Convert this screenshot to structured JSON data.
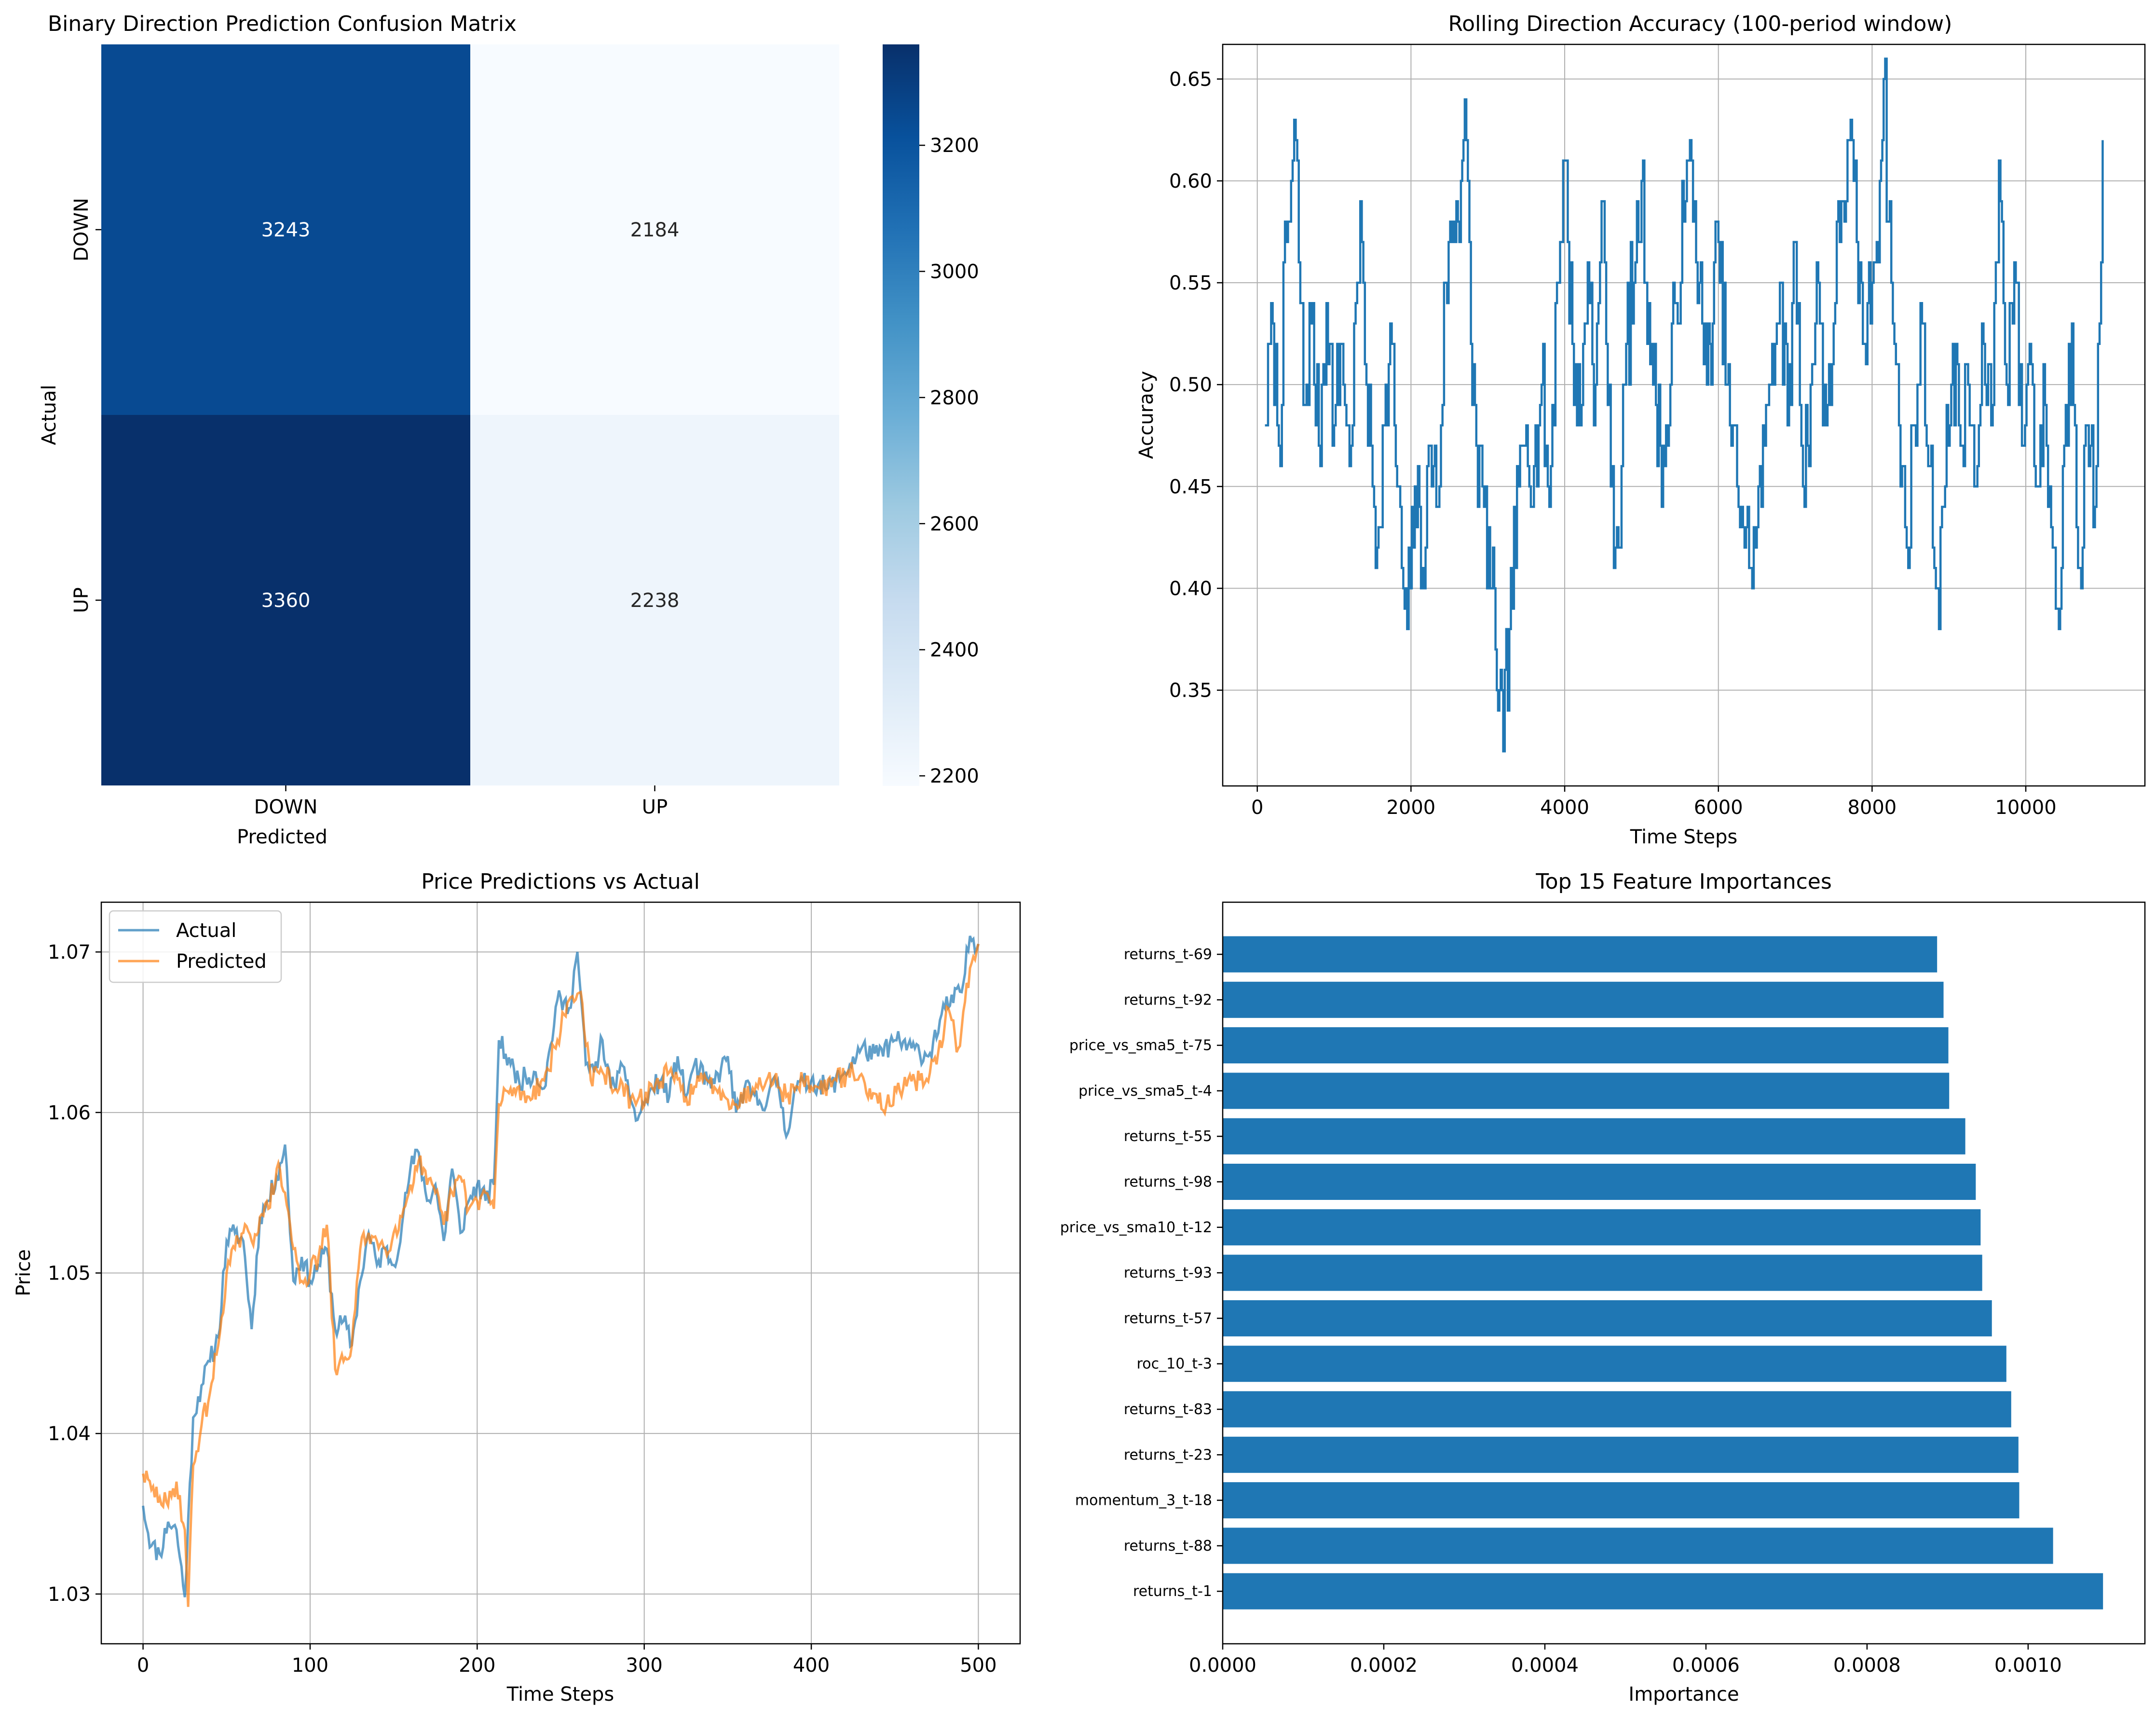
{
  "chart_data": [
    {
      "type": "heatmap",
      "title": "Binary Direction Prediction Confusion Matrix",
      "xlabel": "Predicted",
      "ylabel": "Actual",
      "x_categories": [
        "DOWN",
        "UP"
      ],
      "y_categories": [
        "DOWN",
        "UP"
      ],
      "values": [
        [
          3243,
          2184
        ],
        [
          3360,
          2238
        ]
      ],
      "colormap": "Blues",
      "colorbar": {
        "range": [
          2184,
          3360
        ],
        "ticks": [
          2200,
          2400,
          2600,
          2800,
          3000,
          3200
        ]
      }
    },
    {
      "type": "line",
      "title": "Rolling Direction Accuracy (100-period window)",
      "xlabel": "Time Steps",
      "ylabel": "Accuracy",
      "xlim": [
        -450,
        11550
      ],
      "ylim": [
        0.303,
        0.667
      ],
      "xticks": [
        0,
        2000,
        4000,
        6000,
        8000,
        10000
      ],
      "yticks": [
        0.35,
        0.4,
        0.45,
        0.5,
        0.55,
        0.6,
        0.65
      ],
      "grid": true,
      "color": "#1f77b4",
      "keypoints": [
        [
          100,
          0.48
        ],
        [
          200,
          0.53
        ],
        [
          280,
          0.47
        ],
        [
          380,
          0.57
        ],
        [
          500,
          0.62
        ],
        [
          600,
          0.49
        ],
        [
          700,
          0.53
        ],
        [
          800,
          0.47
        ],
        [
          900,
          0.54
        ],
        [
          1000,
          0.48
        ],
        [
          1100,
          0.52
        ],
        [
          1200,
          0.46
        ],
        [
          1300,
          0.55
        ],
        [
          1360,
          0.57
        ],
        [
          1420,
          0.5
        ],
        [
          1500,
          0.45
        ],
        [
          1560,
          0.42
        ],
        [
          1650,
          0.48
        ],
        [
          1750,
          0.52
        ],
        [
          1820,
          0.45
        ],
        [
          1900,
          0.4
        ],
        [
          1950,
          0.38
        ],
        [
          2050,
          0.45
        ],
        [
          2150,
          0.41
        ],
        [
          2250,
          0.47
        ],
        [
          2350,
          0.44
        ],
        [
          2450,
          0.55
        ],
        [
          2550,
          0.58
        ],
        [
          2650,
          0.6
        ],
        [
          2700,
          0.64
        ],
        [
          2780,
          0.52
        ],
        [
          2850,
          0.47
        ],
        [
          2950,
          0.44
        ],
        [
          3050,
          0.4
        ],
        [
          3100,
          0.37
        ],
        [
          3150,
          0.35
        ],
        [
          3200,
          0.32
        ],
        [
          3280,
          0.38
        ],
        [
          3400,
          0.45
        ],
        [
          3500,
          0.48
        ],
        [
          3600,
          0.46
        ],
        [
          3700,
          0.5
        ],
        [
          3800,
          0.44
        ],
        [
          3900,
          0.55
        ],
        [
          4000,
          0.61
        ],
        [
          4100,
          0.52
        ],
        [
          4200,
          0.48
        ],
        [
          4300,
          0.56
        ],
        [
          4400,
          0.5
        ],
        [
          4500,
          0.59
        ],
        [
          4600,
          0.45
        ],
        [
          4700,
          0.42
        ],
        [
          4800,
          0.52
        ],
        [
          4900,
          0.55
        ],
        [
          5000,
          0.6
        ],
        [
          5150,
          0.5
        ],
        [
          5300,
          0.46
        ],
        [
          5450,
          0.54
        ],
        [
          5550,
          0.58
        ],
        [
          5650,
          0.61
        ],
        [
          5750,
          0.55
        ],
        [
          5850,
          0.5
        ],
        [
          6000,
          0.57
        ],
        [
          6150,
          0.48
        ],
        [
          6300,
          0.44
        ],
        [
          6400,
          0.41
        ],
        [
          6500,
          0.43
        ],
        [
          6600,
          0.47
        ],
        [
          6700,
          0.52
        ],
        [
          6800,
          0.55
        ],
        [
          6900,
          0.48
        ],
        [
          7000,
          0.57
        ],
        [
          7100,
          0.45
        ],
        [
          7200,
          0.5
        ],
        [
          7300,
          0.55
        ],
        [
          7400,
          0.48
        ],
        [
          7500,
          0.53
        ],
        [
          7600,
          0.59
        ],
        [
          7700,
          0.62
        ],
        [
          7800,
          0.57
        ],
        [
          7900,
          0.52
        ],
        [
          8000,
          0.55
        ],
        [
          8100,
          0.6
        ],
        [
          8150,
          0.65
        ],
        [
          8250,
          0.55
        ],
        [
          8350,
          0.48
        ],
        [
          8450,
          0.42
        ],
        [
          8550,
          0.48
        ],
        [
          8650,
          0.53
        ],
        [
          8750,
          0.46
        ],
        [
          8850,
          0.4
        ],
        [
          8950,
          0.45
        ],
        [
          9050,
          0.52
        ],
        [
          9150,
          0.47
        ],
        [
          9250,
          0.5
        ],
        [
          9350,
          0.45
        ],
        [
          9450,
          0.52
        ],
        [
          9550,
          0.48
        ],
        [
          9650,
          0.61
        ],
        [
          9750,
          0.5
        ],
        [
          9850,
          0.56
        ],
        [
          9950,
          0.47
        ],
        [
          10050,
          0.52
        ],
        [
          10150,
          0.45
        ],
        [
          10250,
          0.49
        ],
        [
          10350,
          0.42
        ],
        [
          10430,
          0.38
        ],
        [
          10500,
          0.47
        ],
        [
          10600,
          0.53
        ],
        [
          10700,
          0.41
        ],
        [
          10800,
          0.48
        ],
        [
          10900,
          0.44
        ],
        [
          11000,
          0.62
        ]
      ]
    },
    {
      "type": "line",
      "title": "Price Predictions vs Actual",
      "xlabel": "Time Steps",
      "ylabel": "Price",
      "xlim": [
        -25,
        525
      ],
      "ylim": [
        1.0269,
        1.0731
      ],
      "xticks": [
        0,
        100,
        200,
        300,
        400,
        500
      ],
      "yticks": [
        1.03,
        1.04,
        1.05,
        1.06,
        1.07
      ],
      "grid": true,
      "legend": "top-left",
      "series": [
        {
          "name": "Actual",
          "color": "#1f77b4",
          "keypoints": [
            [
              0,
              1.0355
            ],
            [
              5,
              1.033
            ],
            [
              10,
              1.0325
            ],
            [
              15,
              1.0345
            ],
            [
              20,
              1.034
            ],
            [
              25,
              1.0298
            ],
            [
              30,
              1.041
            ],
            [
              35,
              1.043
            ],
            [
              40,
              1.0445
            ],
            [
              45,
              1.046
            ],
            [
              50,
              1.052
            ],
            [
              55,
              1.0525
            ],
            [
              60,
              1.052
            ],
            [
              65,
              1.0465
            ],
            [
              70,
              1.0535
            ],
            [
              75,
              1.0545
            ],
            [
              80,
              1.056
            ],
            [
              85,
              1.058
            ],
            [
              90,
              1.0495
            ],
            [
              95,
              1.051
            ],
            [
              100,
              1.0495
            ],
            [
              105,
              1.0505
            ],
            [
              110,
              1.0515
            ],
            [
              115,
              1.0465
            ],
            [
              120,
              1.047
            ],
            [
              125,
              1.0455
            ],
            [
              130,
              1.0495
            ],
            [
              135,
              1.0525
            ],
            [
              140,
              1.0505
            ],
            [
              145,
              1.0515
            ],
            [
              150,
              1.0505
            ],
            [
              155,
              1.053
            ],
            [
              160,
              1.0565
            ],
            [
              165,
              1.0575
            ],
            [
              170,
              1.0545
            ],
            [
              175,
              1.0555
            ],
            [
              180,
              1.052
            ],
            [
              185,
              1.0565
            ],
            [
              190,
              1.0525
            ],
            [
              195,
              1.0545
            ],
            [
              200,
              1.0555
            ],
            [
              205,
              1.0545
            ],
            [
              210,
              1.0555
            ],
            [
              213,
              1.0645
            ],
            [
              220,
              1.063
            ],
            [
              225,
              1.062
            ],
            [
              235,
              1.0625
            ],
            [
              240,
              1.0615
            ],
            [
              248,
              1.067
            ],
            [
              255,
              1.0665
            ],
            [
              260,
              1.07
            ],
            [
              265,
              1.063
            ],
            [
              270,
              1.0625
            ],
            [
              275,
              1.0645
            ],
            [
              280,
              1.0615
            ],
            [
              285,
              1.0625
            ],
            [
              290,
              1.062
            ],
            [
              295,
              1.0595
            ],
            [
              300,
              1.0605
            ],
            [
              305,
              1.0615
            ],
            [
              310,
              1.062
            ],
            [
              315,
              1.061
            ],
            [
              320,
              1.0635
            ],
            [
              325,
              1.061
            ],
            [
              330,
              1.063
            ],
            [
              340,
              1.0615
            ],
            [
              350,
              1.0635
            ],
            [
              355,
              1.06
            ],
            [
              360,
              1.0615
            ],
            [
              370,
              1.0605
            ],
            [
              380,
              1.062
            ],
            [
              385,
              1.0585
            ],
            [
              390,
              1.0615
            ],
            [
              400,
              1.062
            ],
            [
              410,
              1.0615
            ],
            [
              420,
              1.0625
            ],
            [
              430,
              1.064
            ],
            [
              440,
              1.0635
            ],
            [
              450,
              1.0645
            ],
            [
              460,
              1.064
            ],
            [
              470,
              1.0635
            ],
            [
              480,
              1.0665
            ],
            [
              490,
              1.0675
            ],
            [
              495,
              1.071
            ],
            [
              500,
              1.0705
            ]
          ]
        },
        {
          "name": "Predicted",
          "color": "#ff7f0e",
          "keypoints": [
            [
              0,
              1.0375
            ],
            [
              5,
              1.0365
            ],
            [
              10,
              1.036
            ],
            [
              15,
              1.0355
            ],
            [
              20,
              1.037
            ],
            [
              25,
              1.034
            ],
            [
              27,
              1.0292
            ],
            [
              30,
              1.038
            ],
            [
              35,
              1.0405
            ],
            [
              40,
              1.0425
            ],
            [
              45,
              1.0455
            ],
            [
              50,
              1.05
            ],
            [
              55,
              1.0515
            ],
            [
              60,
              1.0525
            ],
            [
              65,
              1.052
            ],
            [
              70,
              1.0535
            ],
            [
              75,
              1.054
            ],
            [
              80,
              1.0565
            ],
            [
              85,
              1.055
            ],
            [
              90,
              1.0515
            ],
            [
              95,
              1.0495
            ],
            [
              100,
              1.05
            ],
            [
              105,
              1.051
            ],
            [
              110,
              1.053
            ],
            [
              115,
              1.044
            ],
            [
              120,
              1.0445
            ],
            [
              125,
              1.0455
            ],
            [
              130,
              1.0515
            ],
            [
              135,
              1.0525
            ],
            [
              140,
              1.052
            ],
            [
              145,
              1.0515
            ],
            [
              150,
              1.0525
            ],
            [
              155,
              1.0535
            ],
            [
              160,
              1.0555
            ],
            [
              165,
              1.057
            ],
            [
              170,
              1.0555
            ],
            [
              175,
              1.055
            ],
            [
              180,
              1.053
            ],
            [
              185,
              1.055
            ],
            [
              190,
              1.056
            ],
            [
              195,
              1.054
            ],
            [
              200,
              1.0545
            ],
            [
              205,
              1.055
            ],
            [
              210,
              1.054
            ],
            [
              213,
              1.0605
            ],
            [
              220,
              1.0615
            ],
            [
              230,
              1.061
            ],
            [
              240,
              1.062
            ],
            [
              248,
              1.0645
            ],
            [
              255,
              1.067
            ],
            [
              262,
              1.0675
            ],
            [
              268,
              1.062
            ],
            [
              275,
              1.0625
            ],
            [
              285,
              1.0615
            ],
            [
              295,
              1.0605
            ],
            [
              305,
              1.0615
            ],
            [
              315,
              1.0625
            ],
            [
              325,
              1.061
            ],
            [
              335,
              1.062
            ],
            [
              345,
              1.0615
            ],
            [
              355,
              1.0605
            ],
            [
              365,
              1.0615
            ],
            [
              375,
              1.0625
            ],
            [
              385,
              1.061
            ],
            [
              395,
              1.062
            ],
            [
              405,
              1.0615
            ],
            [
              415,
              1.062
            ],
            [
              425,
              1.0625
            ],
            [
              435,
              1.0615
            ],
            [
              445,
              1.0605
            ],
            [
              455,
              1.0615
            ],
            [
              465,
              1.062
            ],
            [
              475,
              1.063
            ],
            [
              482,
              1.0665
            ],
            [
              488,
              1.064
            ],
            [
              495,
              1.069
            ],
            [
              500,
              1.0705
            ]
          ]
        }
      ]
    },
    {
      "type": "bar",
      "orientation": "horizontal",
      "title": "Top 15 Feature Importances",
      "xlabel": "Importance",
      "ylabel": "",
      "xlim": [
        0,
        0.001145
      ],
      "xticks": [
        "0.0000",
        "0.0002",
        "0.0004",
        "0.0006",
        "0.0008",
        "0.0010"
      ],
      "color": "#1f77b4",
      "categories": [
        "returns_t-69",
        "returns_t-92",
        "price_vs_sma5_t-75",
        "price_vs_sma5_t-4",
        "returns_t-55",
        "returns_t-98",
        "price_vs_sma10_t-12",
        "returns_t-93",
        "returns_t-57",
        "roc_10_t-3",
        "returns_t-83",
        "returns_t-23",
        "momentum_3_t-18",
        "returns_t-88",
        "returns_t-1"
      ],
      "values": [
        0.000887,
        0.000895,
        0.000901,
        0.000902,
        0.000922,
        0.000935,
        0.000941,
        0.000943,
        0.000955,
        0.000973,
        0.000979,
        0.000988,
        0.000989,
        0.001031,
        0.001093
      ]
    }
  ]
}
